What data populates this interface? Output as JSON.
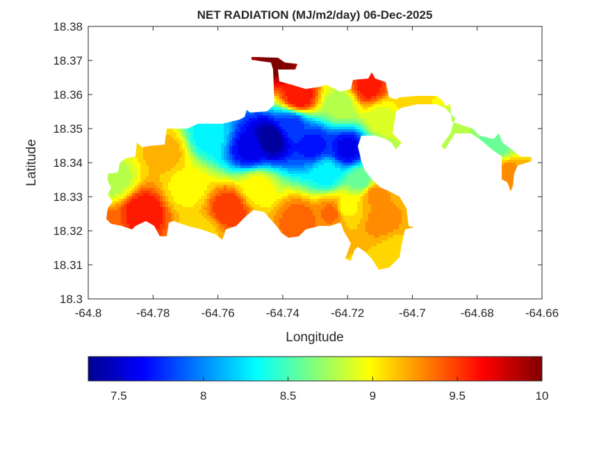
{
  "chart_data": {
    "type": "heatmap",
    "title": "NET RADIATION (MJ/m2/day) 06-Dec-2025",
    "xlabel": "Longitude",
    "ylabel": "Latitude",
    "xlim": [
      -64.8,
      -64.66
    ],
    "ylim": [
      18.3,
      18.38
    ],
    "xticks": [
      "-64.8",
      "-64.78",
      "-64.76",
      "-64.74",
      "-64.72",
      "-64.7",
      "-64.68",
      "-64.66"
    ],
    "yticks": [
      "18.3",
      "18.31",
      "18.32",
      "18.33",
      "18.34",
      "18.35",
      "18.36",
      "18.37",
      "18.38"
    ],
    "colorbar": {
      "colormap": "jet",
      "range": [
        7.32,
        10
      ],
      "ticks": [
        "7.5",
        "8",
        "8.5",
        "9",
        "9.5",
        "10"
      ]
    },
    "grid": false,
    "points": [
      {
        "lon": -64.7436,
        "lat": 18.3469,
        "value": 7.35
      },
      {
        "lon": -64.7307,
        "lat": 18.3449,
        "value": 7.7
      },
      {
        "lon": -64.72,
        "lat": 18.3439,
        "value": 7.6
      },
      {
        "lon": -64.7372,
        "lat": 18.351,
        "value": 7.8
      },
      {
        "lon": -64.75,
        "lat": 18.344,
        "value": 7.6
      },
      {
        "lon": -64.7629,
        "lat": 18.348,
        "value": 8.3
      },
      {
        "lon": -64.7265,
        "lat": 18.3367,
        "value": 8.3
      },
      {
        "lon": -64.7157,
        "lat": 18.3347,
        "value": 8.6
      },
      {
        "lon": -64.7415,
        "lat": 18.3698,
        "value": 10.0
      },
      {
        "lon": -64.735,
        "lat": 18.3592,
        "value": 9.65
      },
      {
        "lon": -64.7136,
        "lat": 18.3622,
        "value": 9.6
      },
      {
        "lon": -64.7222,
        "lat": 18.3571,
        "value": 8.8
      },
      {
        "lon": -64.7093,
        "lat": 18.3531,
        "value": 8.9
      },
      {
        "lon": -64.7007,
        "lat": 18.3582,
        "value": 9.1
      },
      {
        "lon": -64.6708,
        "lat": 18.3367,
        "value": 9.3
      },
      {
        "lon": -64.674,
        "lat": 18.3449,
        "value": 8.6
      },
      {
        "lon": -64.69,
        "lat": 18.348,
        "value": 8.8
      },
      {
        "lon": -64.7833,
        "lat": 18.3255,
        "value": 9.65
      },
      {
        "lon": -64.7919,
        "lat": 18.3347,
        "value": 8.8
      },
      {
        "lon": -64.776,
        "lat": 18.3429,
        "value": 9.2
      },
      {
        "lon": -64.7565,
        "lat": 18.3265,
        "value": 9.55
      },
      {
        "lon": -64.735,
        "lat": 18.3235,
        "value": 9.4
      },
      {
        "lon": -64.7243,
        "lat": 18.3255,
        "value": 9.4
      },
      {
        "lon": -64.7093,
        "lat": 18.3224,
        "value": 9.3
      },
      {
        "lon": -64.706,
        "lat": 18.3143,
        "value": 9.1
      },
      {
        "lon": -64.7115,
        "lat": 18.3306,
        "value": 9.3
      },
      {
        "lon": -64.7693,
        "lat": 18.3327,
        "value": 9.0
      },
      {
        "lon": -64.7479,
        "lat": 18.3327,
        "value": 9.0
      },
      {
        "lon": -64.7211,
        "lat": 18.3265,
        "value": 9.0
      },
      {
        "lon": -64.795,
        "lat": 18.3214,
        "value": 9.4
      },
      {
        "lon": -64.765,
        "lat": 18.319,
        "value": 9.1
      }
    ]
  }
}
